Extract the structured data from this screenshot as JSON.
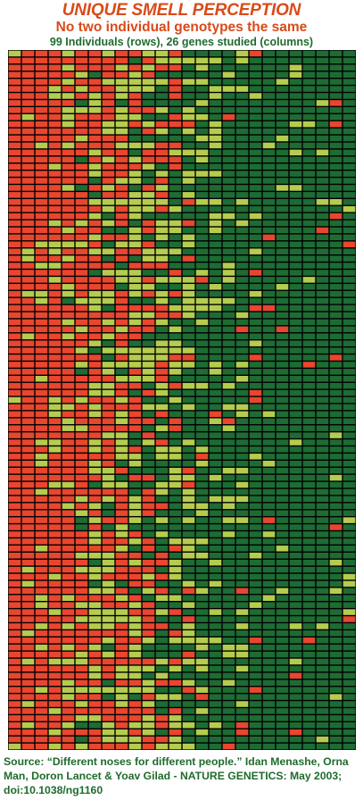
{
  "header": {
    "title": "UNIQUE SMELL PERCEPTION",
    "subtitle": "No two individual genotypes the same",
    "caption": "99 Individuals (rows), 26 genes studied (columns)"
  },
  "source": "Source: “Different noses for different people.” Idan Menashe, Orna Man, Doron Lancet & Yoav Gilad - NATURE GENETICS: May 2003; doi:10.1038/ng1160",
  "colors": {
    "red": "#e8462f",
    "light_green": "#b5cc4f",
    "dark_green": "#1e6b34",
    "grid": "#000000"
  },
  "chart_data": {
    "type": "heatmap",
    "rows": 99,
    "columns": 26,
    "cell_categories": [
      "red",
      "light_green",
      "dark_green"
    ],
    "legend": "none",
    "grid": true
  }
}
